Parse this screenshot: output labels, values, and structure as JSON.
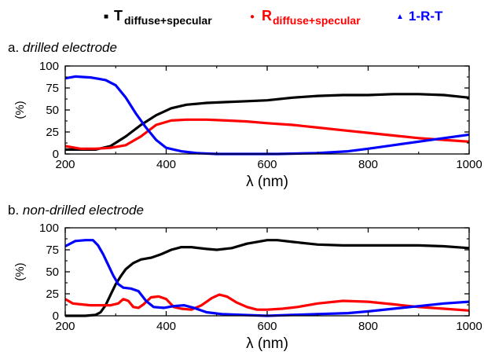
{
  "legend": [
    {
      "marker": "■",
      "main": "T",
      "sub": "diffuse+specular",
      "color": "#000000"
    },
    {
      "marker": "●",
      "main": "R",
      "sub": "diffuse+specular",
      "color": "#ff0000"
    },
    {
      "marker": "▲",
      "main": "1-R-T",
      "sub": "",
      "color": "#0000ff"
    }
  ],
  "chart_data": [
    {
      "type": "line",
      "panel_label_prefix": "a.",
      "title": "drilled electrode",
      "xlabel": "λ (nm)",
      "ylabel": "(%)",
      "xlim": [
        200,
        1000
      ],
      "ylim": [
        0,
        100
      ],
      "xticks": [
        200,
        400,
        600,
        800,
        1000
      ],
      "yticks": [
        0,
        25,
        50,
        75,
        100
      ],
      "series": [
        {
          "name": "T",
          "color": "#000000",
          "x": [
            200,
            230,
            260,
            290,
            320,
            350,
            380,
            410,
            440,
            480,
            520,
            560,
            600,
            650,
            700,
            750,
            800,
            850,
            900,
            950,
            1000
          ],
          "y": [
            5,
            5,
            5,
            9,
            20,
            33,
            44,
            52,
            56,
            58,
            59,
            60,
            61,
            64,
            66,
            67,
            67,
            68,
            68,
            67,
            64
          ]
        },
        {
          "name": "R",
          "color": "#ff0000",
          "x": [
            200,
            230,
            260,
            290,
            320,
            350,
            380,
            410,
            440,
            480,
            520,
            560,
            600,
            650,
            700,
            750,
            800,
            850,
            900,
            950,
            1000
          ],
          "y": [
            9,
            6,
            6,
            7,
            10,
            20,
            33,
            38,
            39,
            39,
            38,
            37,
            35,
            33,
            30,
            27,
            24,
            21,
            18,
            16,
            14
          ]
        },
        {
          "name": "1-R-T",
          "color": "#0000ff",
          "x": [
            200,
            220,
            250,
            280,
            300,
            320,
            340,
            360,
            380,
            400,
            430,
            460,
            500,
            560,
            620,
            700,
            760,
            800,
            850,
            900,
            950,
            1000
          ],
          "y": [
            86,
            88,
            87,
            84,
            78,
            64,
            46,
            30,
            16,
            7,
            3,
            1,
            0,
            0,
            0,
            1,
            3,
            6,
            10,
            14,
            18,
            22
          ]
        }
      ]
    },
    {
      "type": "line",
      "panel_label_prefix": "b.",
      "title": "non-drilled electrode",
      "xlabel": "λ (nm)",
      "ylabel": "(%)",
      "xlim": [
        200,
        1000
      ],
      "ylim": [
        0,
        100
      ],
      "xticks": [
        200,
        400,
        600,
        800,
        1000
      ],
      "yticks": [
        0,
        25,
        50,
        75,
        100
      ],
      "series": [
        {
          "name": "T",
          "color": "#000000",
          "x": [
            200,
            240,
            260,
            270,
            280,
            290,
            300,
            310,
            320,
            335,
            350,
            370,
            390,
            410,
            430,
            450,
            480,
            500,
            530,
            560,
            600,
            620,
            650,
            700,
            750,
            800,
            850,
            900,
            950,
            1000
          ],
          "y": [
            0,
            0,
            1,
            4,
            12,
            24,
            36,
            45,
            53,
            60,
            64,
            66,
            70,
            75,
            78,
            78,
            76,
            75,
            77,
            82,
            86,
            86,
            84,
            81,
            80,
            80,
            80,
            80,
            79,
            77
          ]
        },
        {
          "name": "R",
          "color": "#ff0000",
          "x": [
            200,
            215,
            230,
            250,
            270,
            290,
            305,
            315,
            325,
            335,
            345,
            355,
            370,
            385,
            400,
            415,
            430,
            450,
            470,
            490,
            505,
            520,
            540,
            560,
            580,
            600,
            630,
            660,
            700,
            750,
            800,
            850,
            900,
            950,
            1000
          ],
          "y": [
            19,
            14,
            13,
            12,
            12,
            12,
            14,
            19,
            17,
            10,
            9,
            13,
            21,
            22,
            19,
            10,
            8,
            7,
            12,
            20,
            24,
            22,
            15,
            10,
            7,
            7,
            8,
            10,
            14,
            17,
            16,
            13,
            10,
            8,
            6
          ]
        },
        {
          "name": "1-R-T",
          "color": "#0000ff",
          "x": [
            200,
            220,
            240,
            255,
            265,
            275,
            285,
            295,
            305,
            315,
            330,
            345,
            360,
            375,
            395,
            415,
            435,
            455,
            480,
            510,
            550,
            600,
            650,
            700,
            760,
            800,
            850,
            900,
            950,
            1000
          ],
          "y": [
            79,
            85,
            86,
            86,
            80,
            70,
            58,
            46,
            36,
            32,
            31,
            28,
            17,
            10,
            9,
            11,
            12,
            9,
            4,
            2,
            1,
            0,
            1,
            2,
            3,
            5,
            8,
            11,
            14,
            16
          ]
        }
      ]
    }
  ]
}
